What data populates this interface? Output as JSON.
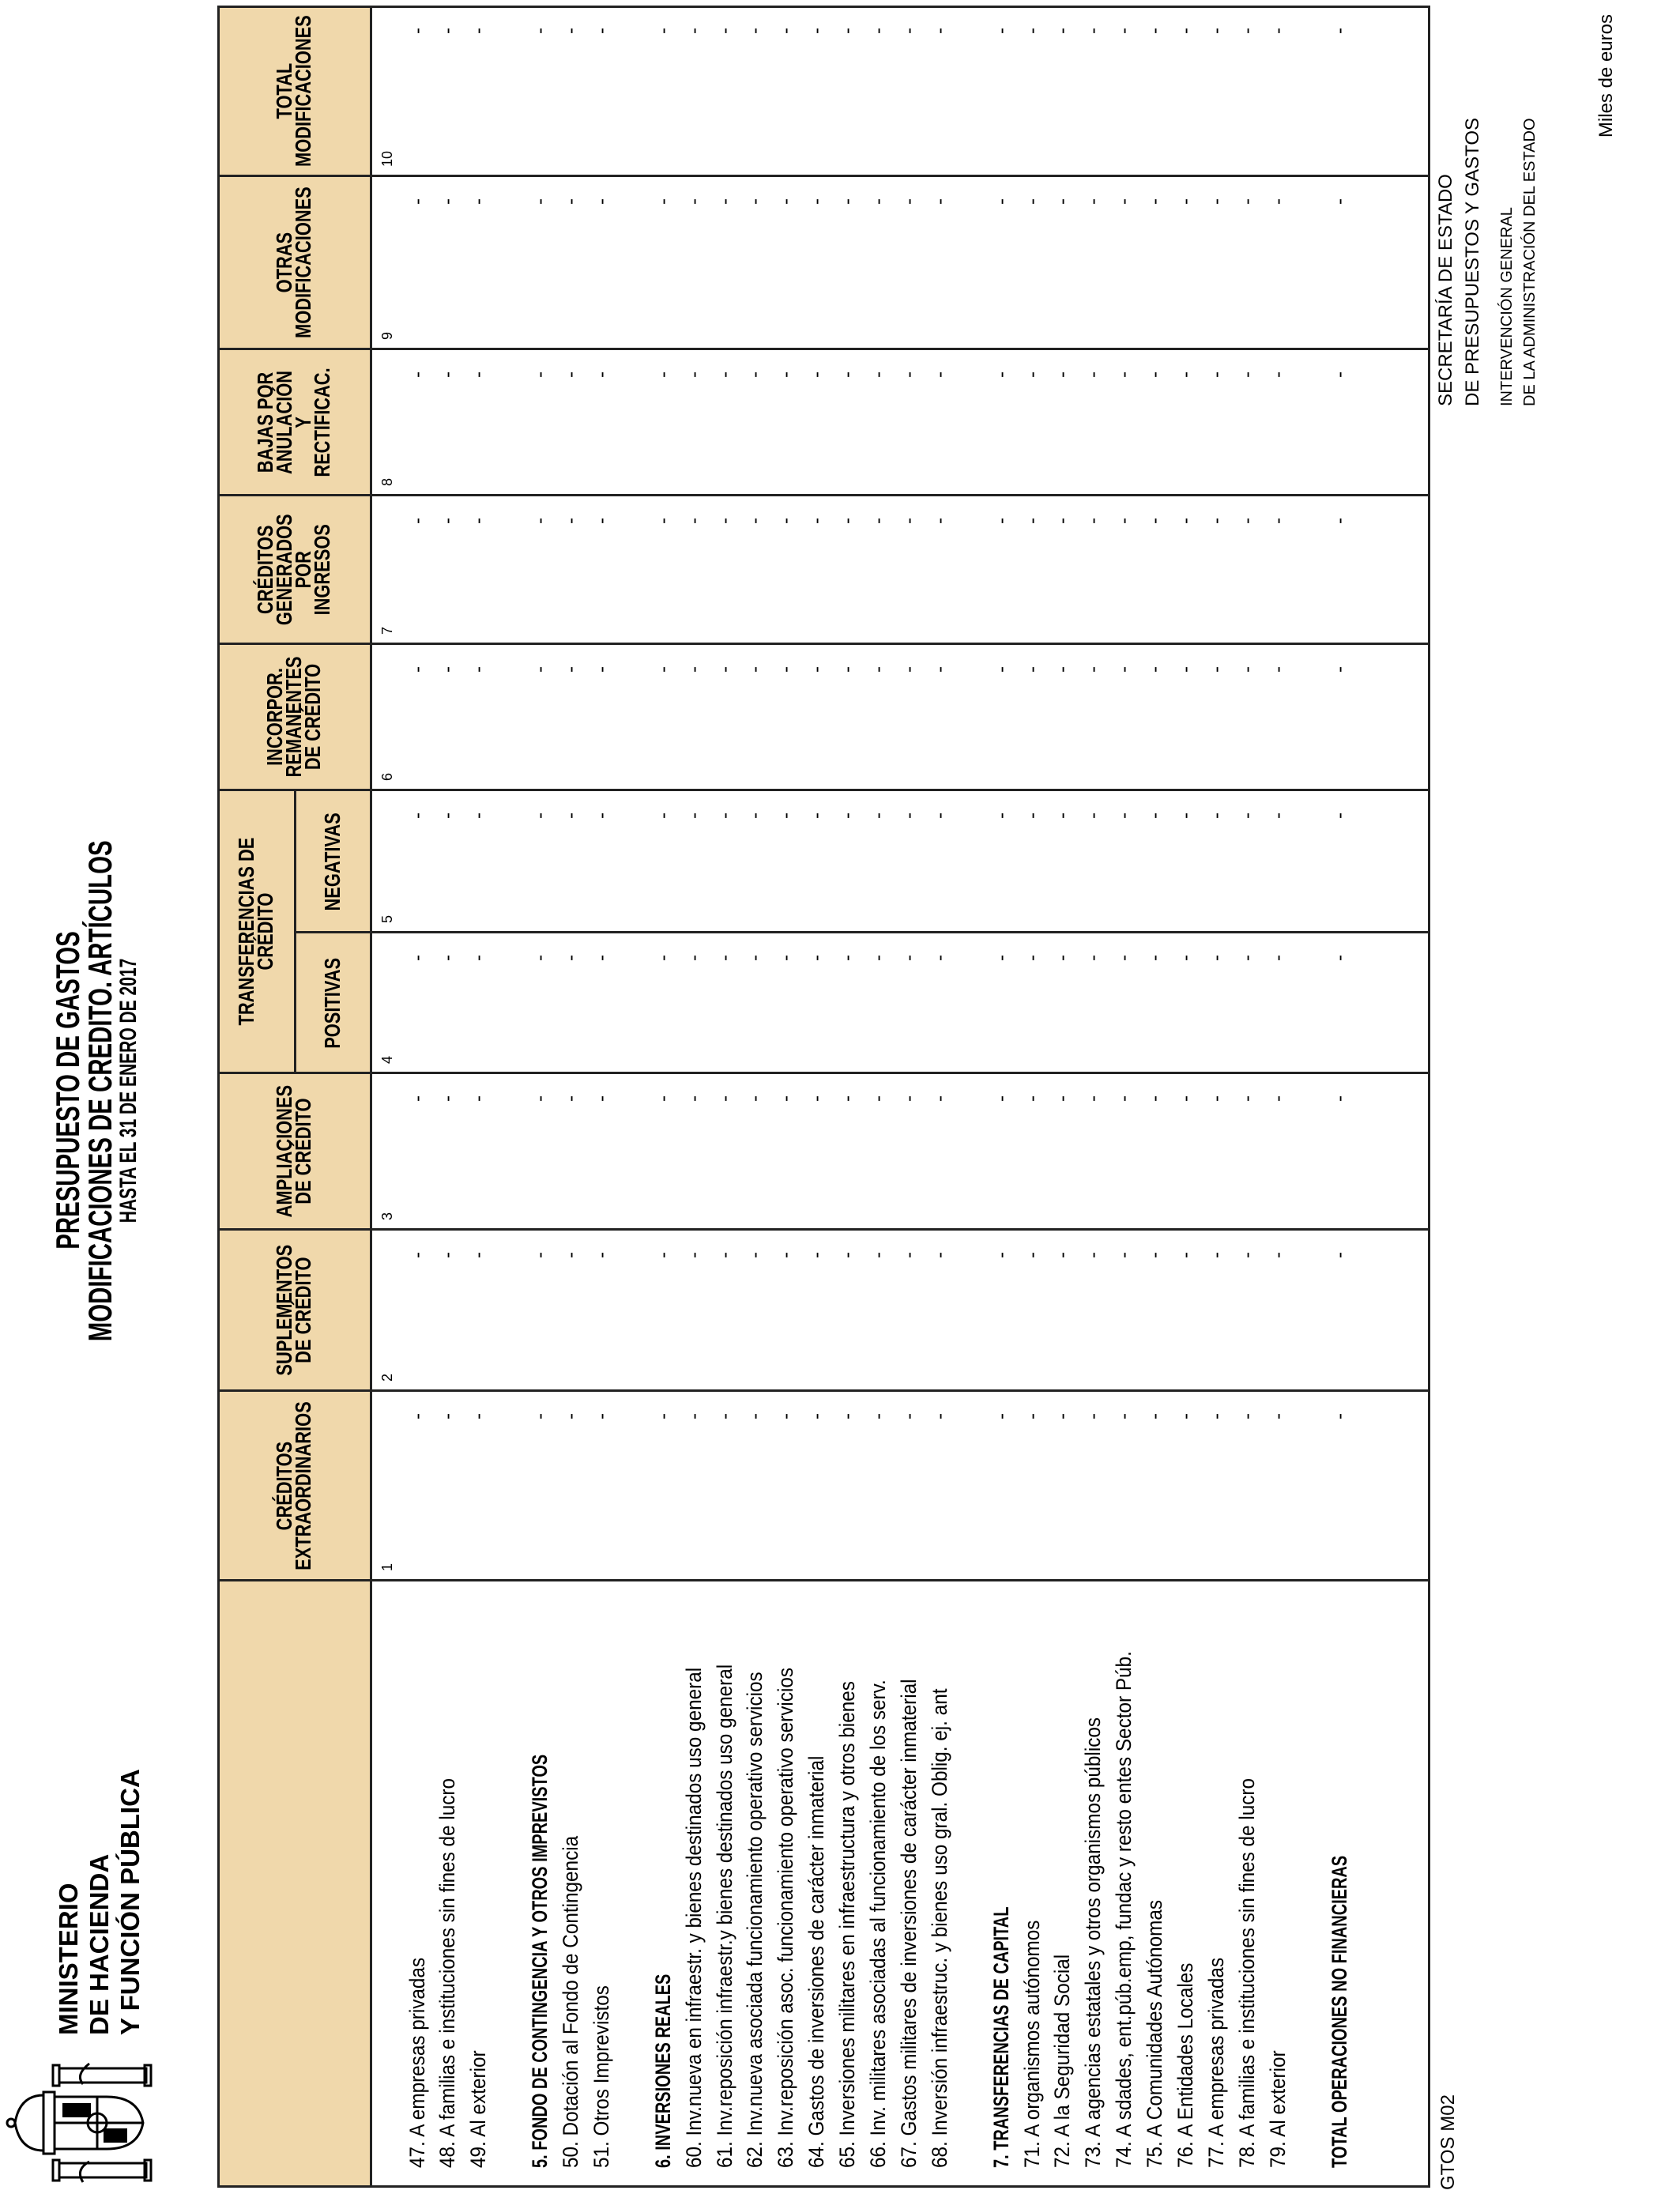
{
  "ministry": {
    "lines": [
      "MINISTERIO",
      "DE HACIENDA",
      "Y FUNCIÓN PÚBLICA"
    ],
    "logo_icon": "spanish-coat-of-arms"
  },
  "title": {
    "line1": "PRESUPUESTO DE GASTOS",
    "line2": "MODIFICACIONES DE CREDITO. ARTÍCULOS",
    "line3": "HASTA EL 31 DE ENERO DE 2017"
  },
  "secretaria": {
    "line1": "SECRETARÍA DE ESTADO",
    "line2": "DE PRESUPUESTOS Y GASTOS",
    "line3": "INTERVENCIÓN GENERAL",
    "line4": "DE LA ADMINISTRACIÓN DEL ESTADO"
  },
  "units": "Miles de euros",
  "form_code": "GTOS M02",
  "colors": {
    "header_bg": "#F0D8AB",
    "border": "#222222"
  },
  "columns": [
    {
      "num": "1",
      "label": "CRÉDITOS\nEXTRAORDINARIOS"
    },
    {
      "num": "2",
      "label": "SUPLEMENTOS\nDE CRÉDITO"
    },
    {
      "num": "3",
      "label": "AMPLIACIONES\nDE CRÉDITO"
    },
    {
      "num": "4",
      "label": "POSITIVAS"
    },
    {
      "num": "5",
      "label": "NEGATIVAS"
    },
    {
      "num": "6",
      "label": "INCORPOR.\nREMANENTES\nDE CRÉDITO"
    },
    {
      "num": "7",
      "label": "CRÉDITOS\nGENERADOS\nPOR\nINGRESOS"
    },
    {
      "num": "8",
      "label": "BAJAS POR\nANULACIÓN Y\nRECTIFICAC."
    },
    {
      "num": "9",
      "label": "OTRAS\nMODIFICACIONES"
    },
    {
      "num": "10",
      "label": "TOTAL\nMODIFICACIONES"
    }
  ],
  "group_header": "TRANSFERENCIAS DE\nCRÉDITO",
  "rows": [
    {
      "label": "47. A empresas privadas",
      "bold": false,
      "values": [
        "-",
        "-",
        "-",
        "-",
        "-",
        "-",
        "-",
        "-",
        "-",
        "-"
      ]
    },
    {
      "label": "48. A familias e instituciones sin fines de lucro",
      "bold": false,
      "values": [
        "-",
        "-",
        "-",
        "-",
        "-",
        "-",
        "-",
        "-",
        "-",
        "-"
      ]
    },
    {
      "label": "49. Al exterior",
      "bold": false,
      "values": [
        "-",
        "-",
        "-",
        "-",
        "-",
        "-",
        "-",
        "-",
        "-",
        "-"
      ]
    },
    {
      "label": "5. FONDO DE CONTINGENCIA Y OTROS IMPREVISTOS",
      "bold": true,
      "values": [
        "-",
        "-",
        "-",
        "-",
        "-",
        "-",
        "-",
        "-",
        "-",
        "-"
      ]
    },
    {
      "label": "50. Dotación al Fondo de Contingencia",
      "bold": false,
      "values": [
        "-",
        "-",
        "-",
        "-",
        "-",
        "-",
        "-",
        "-",
        "-",
        "-"
      ]
    },
    {
      "label": "51. Otros Imprevistos",
      "bold": false,
      "values": [
        "-",
        "-",
        "-",
        "-",
        "-",
        "-",
        "-",
        "-",
        "-",
        "-"
      ]
    },
    {
      "label": "6. INVERSIONES REALES",
      "bold": true,
      "values": [
        "-",
        "-",
        "-",
        "-",
        "-",
        "-",
        "-",
        "-",
        "-",
        "-"
      ]
    },
    {
      "label": "60. Inv.nueva en infraestr. y bienes destinados uso general",
      "bold": false,
      "values": [
        "-",
        "-",
        "-",
        "-",
        "-",
        "-",
        "-",
        "-",
        "-",
        "-"
      ]
    },
    {
      "label": "61. Inv.reposición infraestr.y bienes destinados uso general",
      "bold": false,
      "values": [
        "-",
        "-",
        "-",
        "-",
        "-",
        "-",
        "-",
        "-",
        "-",
        "-"
      ]
    },
    {
      "label": "62. Inv.nueva asociada funcionamiento operativo servicios",
      "bold": false,
      "values": [
        "-",
        "-",
        "-",
        "-",
        "-",
        "-",
        "-",
        "-",
        "-",
        "-"
      ]
    },
    {
      "label": "63. Inv.reposición asoc. funcionamiento operativo servicios",
      "bold": false,
      "values": [
        "-",
        "-",
        "-",
        "-",
        "-",
        "-",
        "-",
        "-",
        "-",
        "-"
      ]
    },
    {
      "label": "64. Gastos de inversiones de carácter inmaterial",
      "bold": false,
      "values": [
        "-",
        "-",
        "-",
        "-",
        "-",
        "-",
        "-",
        "-",
        "-",
        "-"
      ]
    },
    {
      "label": "65. Inversiones militares en infraestructura y otros bienes",
      "bold": false,
      "values": [
        "-",
        "-",
        "-",
        "-",
        "-",
        "-",
        "-",
        "-",
        "-",
        "-"
      ]
    },
    {
      "label": "66. Inv. militares asociadas al funcionamiento de los serv.",
      "bold": false,
      "values": [
        "-",
        "-",
        "-",
        "-",
        "-",
        "-",
        "-",
        "-",
        "-",
        "-"
      ]
    },
    {
      "label": "67. Gastos militares de inversiones de carácter inmaterial",
      "bold": false,
      "values": [
        "-",
        "-",
        "-",
        "-",
        "-",
        "-",
        "-",
        "-",
        "-",
        "-"
      ]
    },
    {
      "label": "68. Inversión infraestruc. y bienes uso gral. Oblig. ej. ant",
      "bold": false,
      "values": [
        "-",
        "-",
        "-",
        "-",
        "-",
        "-",
        "-",
        "-",
        "-",
        "-"
      ]
    },
    {
      "label": "7. TRANSFERENCIAS DE CAPITAL",
      "bold": true,
      "values": [
        "-",
        "-",
        "-",
        "-",
        "-",
        "-",
        "-",
        "-",
        "-",
        "-"
      ]
    },
    {
      "label": "71. A organismos autónomos",
      "bold": false,
      "values": [
        "-",
        "-",
        "-",
        "-",
        "-",
        "-",
        "-",
        "-",
        "-",
        "-"
      ]
    },
    {
      "label": "72. A la Seguridad Social",
      "bold": false,
      "values": [
        "-",
        "-",
        "-",
        "-",
        "-",
        "-",
        "-",
        "-",
        "-",
        "-"
      ]
    },
    {
      "label": "73. A agencias estatales y otros organismos públicos",
      "bold": false,
      "values": [
        "-",
        "-",
        "-",
        "-",
        "-",
        "-",
        "-",
        "-",
        "-",
        "-"
      ]
    },
    {
      "label": "74. A sdades, ent.púb.emp, fundac y resto entes Sector Púb.",
      "bold": false,
      "values": [
        "-",
        "-",
        "-",
        "-",
        "-",
        "-",
        "-",
        "-",
        "-",
        "-"
      ]
    },
    {
      "label": "75. A Comunidades Autónomas",
      "bold": false,
      "values": [
        "-",
        "-",
        "-",
        "-",
        "-",
        "-",
        "-",
        "-",
        "-",
        "-"
      ]
    },
    {
      "label": "76. A Entidades Locales",
      "bold": false,
      "values": [
        "-",
        "-",
        "-",
        "-",
        "-",
        "-",
        "-",
        "-",
        "-",
        "-"
      ]
    },
    {
      "label": "77. A empresas privadas",
      "bold": false,
      "values": [
        "-",
        "-",
        "-",
        "-",
        "-",
        "-",
        "-",
        "-",
        "-",
        "-"
      ]
    },
    {
      "label": "78. A familias e instituciones sin fines de lucro",
      "bold": false,
      "values": [
        "-",
        "-",
        "-",
        "-",
        "-",
        "-",
        "-",
        "-",
        "-",
        "-"
      ]
    },
    {
      "label": "79. Al exterior",
      "bold": false,
      "values": [
        "-",
        "-",
        "-",
        "-",
        "-",
        "-",
        "-",
        "-",
        "-",
        "-"
      ]
    },
    {
      "label": "TOTAL OPERACIONES NO FINANCIERAS",
      "bold": true,
      "values": [
        "-",
        "-",
        "-",
        "-",
        "-",
        "-",
        "-",
        "-",
        "-",
        "-"
      ]
    }
  ]
}
